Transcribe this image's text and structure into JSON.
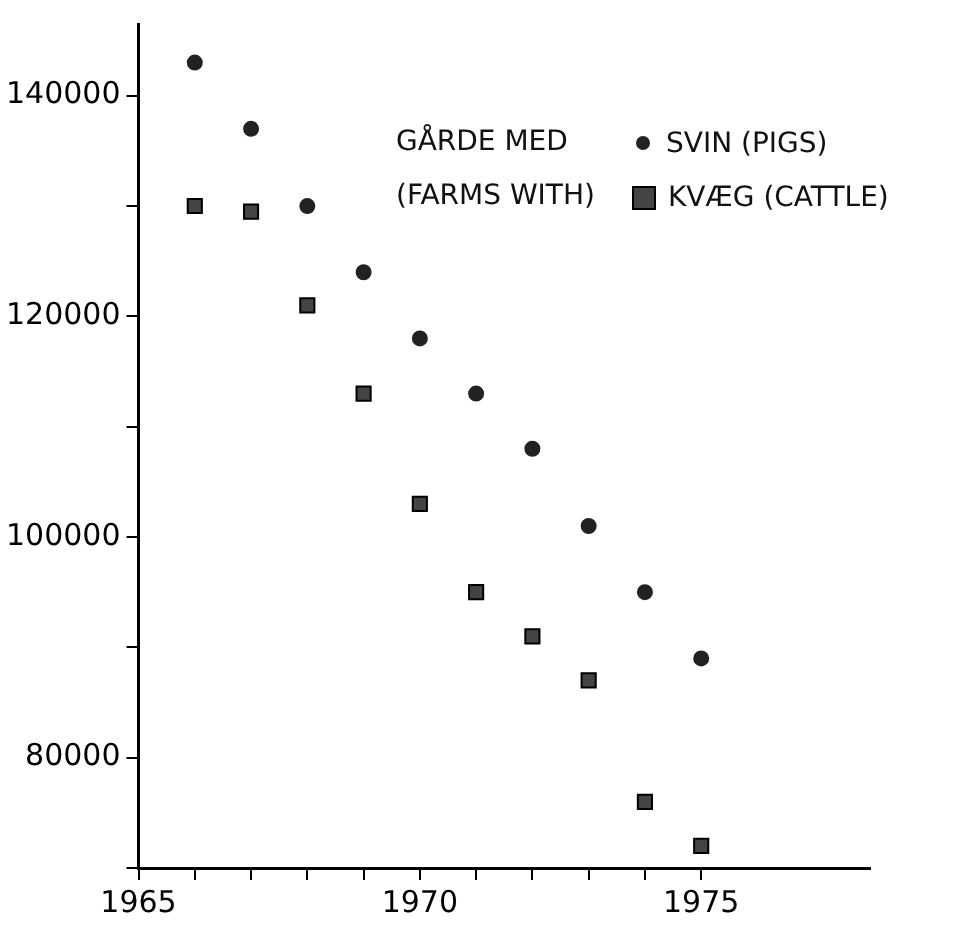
{
  "chart_data": {
    "type": "scatter",
    "legend_title": "GÅRDE MED (FARMS WITH)",
    "legend": "top right",
    "grid": false,
    "x": [
      1966,
      1967,
      1968,
      1969,
      1970,
      1971,
      1972,
      1973,
      1974,
      1975
    ],
    "series": [
      {
        "name": "SVIN (PIGS)",
        "color": "#222222",
        "marker": "circle",
        "values": [
          143000,
          137000,
          130000,
          124000,
          118000,
          113000,
          108000,
          101000,
          95000,
          89000
        ]
      },
      {
        "name": "KVÆG (CATTLE)",
        "color": "#444444",
        "marker": "square",
        "values": [
          130000,
          129500,
          121000,
          113000,
          103000,
          95000,
          91000,
          87000,
          76000,
          72000
        ]
      }
    ],
    "xlim": [
      1965,
      1978
    ],
    "xticks": [
      1965,
      {
        "value": 1966,
        "label": null
      },
      {
        "value": 1967,
        "label": null
      },
      {
        "value": 1968,
        "label": null
      },
      {
        "value": 1969,
        "label": null
      },
      1970,
      {
        "value": 1971,
        "label": null
      },
      {
        "value": 1972,
        "label": null
      },
      {
        "value": 1973,
        "label": null
      },
      {
        "value": 1974,
        "label": null
      },
      1975
    ],
    "ylim": [
      70000,
      146500
    ],
    "yticks": [
      {
        "value": 70000,
        "label": null
      },
      80000,
      {
        "value": 90000,
        "label": null
      },
      100000,
      {
        "value": 110000,
        "label": null
      },
      120000,
      {
        "value": 130000,
        "label": null
      },
      140000
    ]
  }
}
